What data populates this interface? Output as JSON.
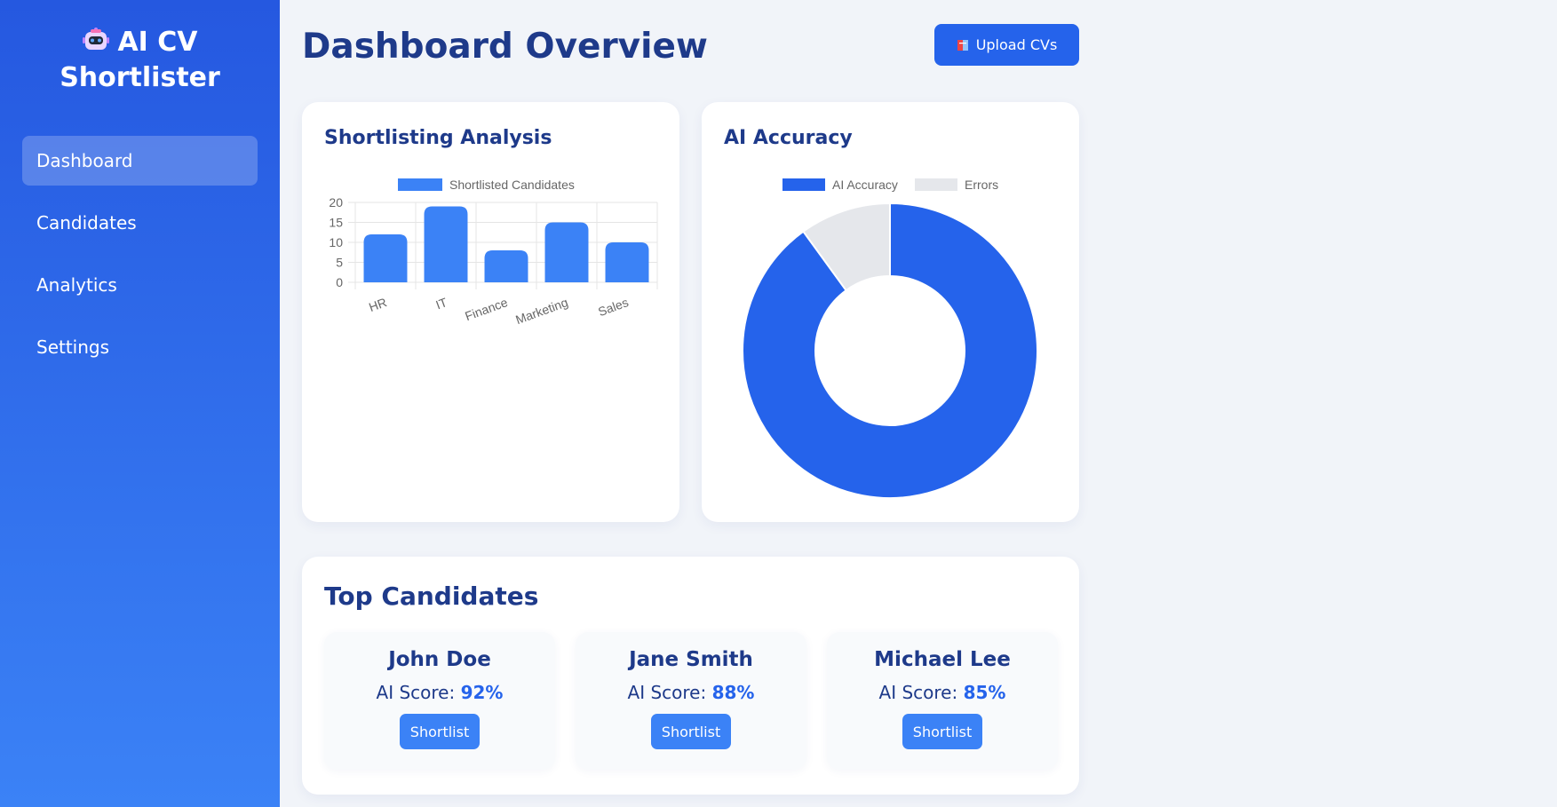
{
  "sidebar": {
    "brand_line1": "AI CV",
    "brand_line2": "Shortlister",
    "items": [
      {
        "label": "Dashboard"
      },
      {
        "label": "Candidates"
      },
      {
        "label": "Analytics"
      },
      {
        "label": "Settings"
      }
    ]
  },
  "header": {
    "title": "Dashboard Overview",
    "upload_label": "Upload CVs"
  },
  "cards": {
    "analysis_title": "Shortlisting Analysis",
    "accuracy_title": "AI Accuracy",
    "top_title": "Top Candidates"
  },
  "chart_data": [
    {
      "type": "bar",
      "title": "Shortlisting Analysis",
      "categories": [
        "HR",
        "IT",
        "Finance",
        "Marketing",
        "Sales"
      ],
      "series": [
        {
          "name": "Shortlisted Candidates",
          "values": [
            12,
            19,
            8,
            15,
            10
          ]
        }
      ],
      "ylim": [
        0,
        20
      ],
      "yticks": [
        0,
        5,
        10,
        15,
        20
      ],
      "grid": true,
      "legend": "top",
      "color": "#3b82f6"
    },
    {
      "type": "pie",
      "title": "AI Accuracy",
      "labels": [
        "AI Accuracy",
        "Errors"
      ],
      "values": [
        90,
        10
      ],
      "colors": [
        "#2563eb",
        "#e5e7eb"
      ],
      "legend": "top"
    }
  ],
  "candidates": [
    {
      "name": "John Doe",
      "score_label": "AI Score:",
      "score": "92%",
      "action": "Shortlist"
    },
    {
      "name": "Jane Smith",
      "score_label": "AI Score:",
      "score": "88%",
      "action": "Shortlist"
    },
    {
      "name": "Michael Lee",
      "score_label": "AI Score:",
      "score": "85%",
      "action": "Shortlist"
    }
  ]
}
